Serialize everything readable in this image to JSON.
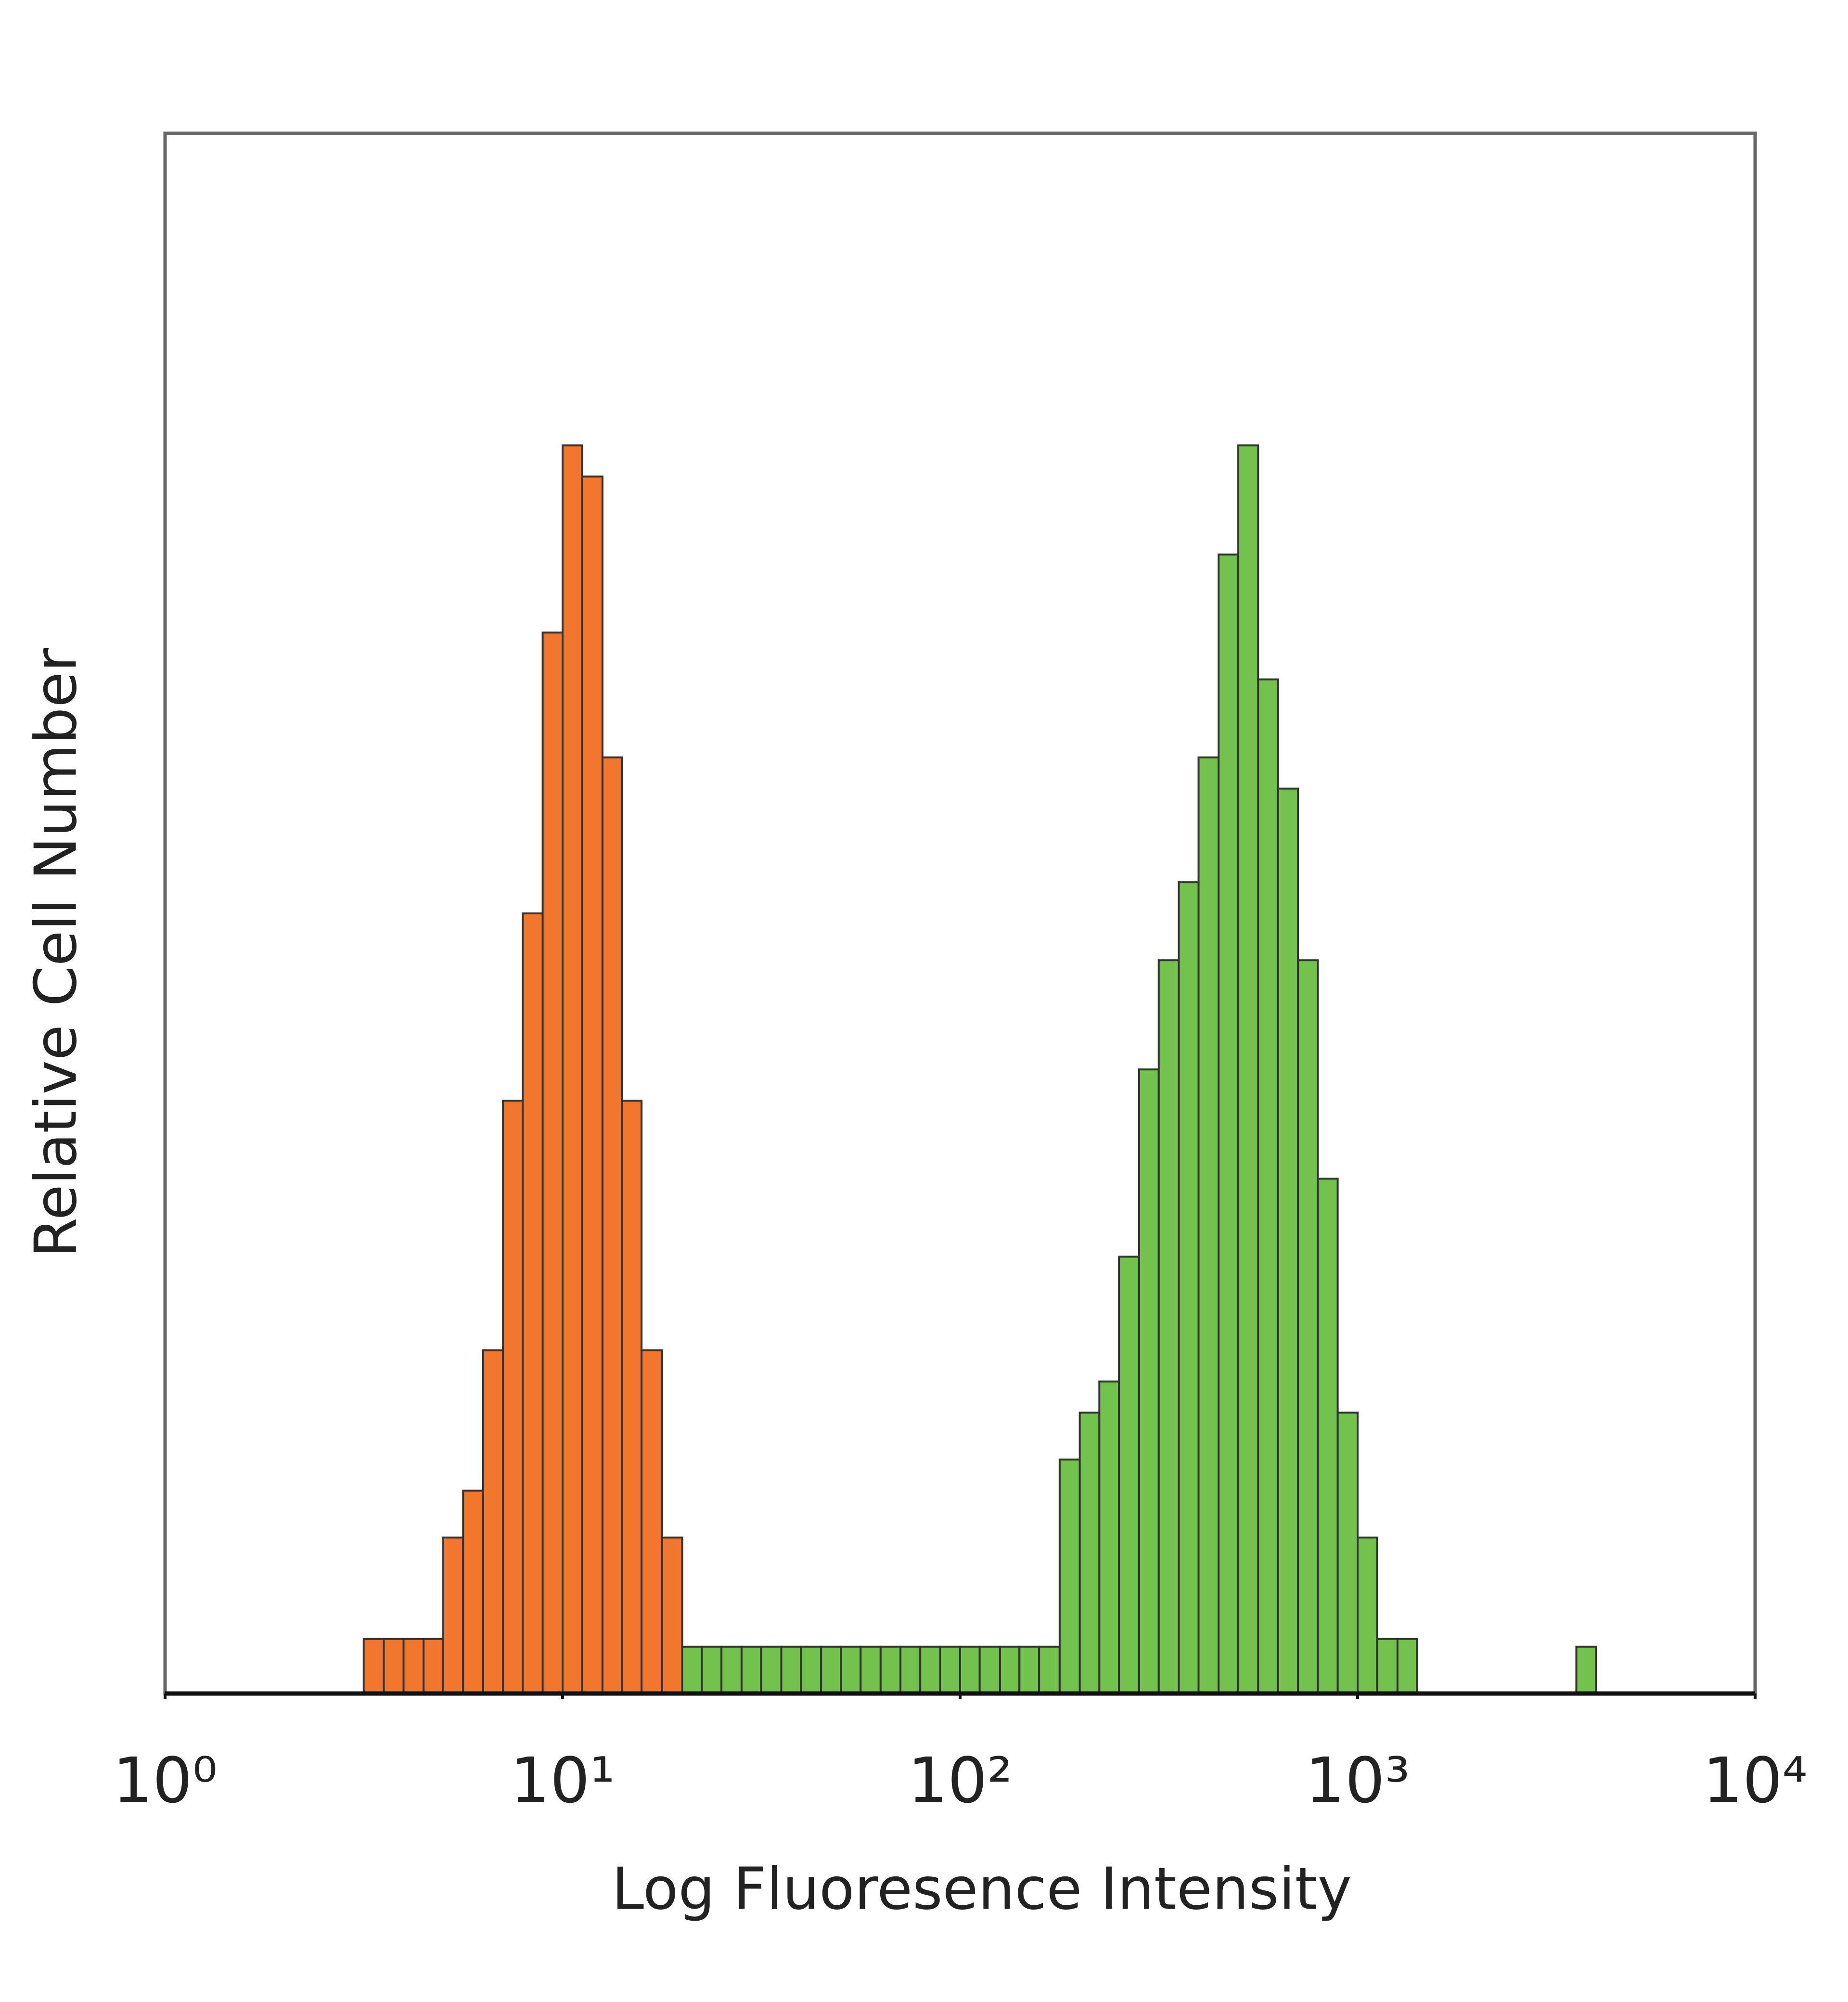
{
  "chart_data": {
    "type": "histogram",
    "xlabel": "Log Fluoresence Intensity",
    "ylabel": "Relative Cell Number",
    "xscale": "log",
    "xlim": [
      1,
      10000
    ],
    "ylim": [
      0,
      100
    ],
    "xticks": [
      {
        "value": 1,
        "label": "10⁰"
      },
      {
        "value": 10,
        "label": "10¹"
      },
      {
        "value": 100,
        "label": "10²"
      },
      {
        "value": 1000,
        "label": "10³"
      },
      {
        "value": 10000,
        "label": "10⁴"
      }
    ],
    "bins": [
      1,
      1.12,
      1.26,
      1.41,
      1.58,
      1.78,
      2,
      2.24,
      2.51,
      2.82,
      3.16,
      3.55,
      3.98,
      4.47,
      5.01,
      5.62,
      6.31,
      7.08,
      7.94,
      8.91,
      10,
      11.2,
      12.6,
      14.1,
      15.8,
      17.8,
      20,
      22.4,
      25.1,
      28.2,
      31.6,
      35.5,
      39.8,
      44.7,
      50.1,
      56.2,
      63.1,
      70.8,
      79.4,
      89.1,
      100,
      112,
      126,
      141,
      158,
      178,
      200,
      224,
      251,
      282,
      316,
      355,
      398,
      447,
      501,
      562,
      631,
      708,
      794,
      891,
      1000,
      1120,
      1260,
      1410,
      1580,
      1780,
      2000,
      2240,
      2510,
      2820,
      3160,
      3550,
      3980,
      4470,
      5010,
      5620,
      6310,
      7080,
      7940,
      8910,
      10000
    ],
    "series": [
      {
        "color": "#f07022",
        "values": [
          0,
          0,
          0,
          0,
          0,
          0,
          0,
          0,
          0,
          0,
          3.5,
          3.5,
          3.5,
          3.5,
          10,
          13,
          22,
          38,
          50,
          68,
          80,
          78,
          60,
          38,
          22,
          10,
          0,
          0,
          0,
          0,
          0,
          0,
          0,
          0,
          0,
          0,
          0,
          0,
          0,
          0,
          0,
          0,
          0,
          0,
          0,
          0,
          0,
          0,
          0,
          0,
          0,
          0,
          0,
          0,
          0,
          0,
          0,
          0,
          0,
          0,
          0,
          0,
          0,
          0,
          0,
          0,
          0,
          0,
          0,
          0,
          0,
          0,
          0,
          0,
          0,
          0,
          0,
          0,
          0,
          0
        ]
      },
      {
        "color": "#6cbf45",
        "values": [
          0,
          0,
          0,
          0,
          0,
          0,
          0,
          0,
          0,
          0,
          0,
          0,
          0,
          0,
          0,
          0,
          0,
          0,
          0,
          0,
          0,
          0,
          0,
          0,
          0,
          0,
          3,
          3,
          3,
          3,
          3,
          3,
          3,
          3,
          3,
          3,
          3,
          3,
          3,
          3,
          3,
          3,
          3,
          3,
          3,
          15,
          18,
          20,
          28,
          40,
          47,
          52,
          60,
          73,
          80,
          65,
          58,
          47,
          33,
          18,
          10,
          3.5,
          3.5,
          0,
          0,
          0,
          0,
          0,
          0,
          0,
          0,
          3,
          0,
          0,
          0,
          0,
          0,
          0,
          0,
          0
        ]
      }
    ]
  }
}
